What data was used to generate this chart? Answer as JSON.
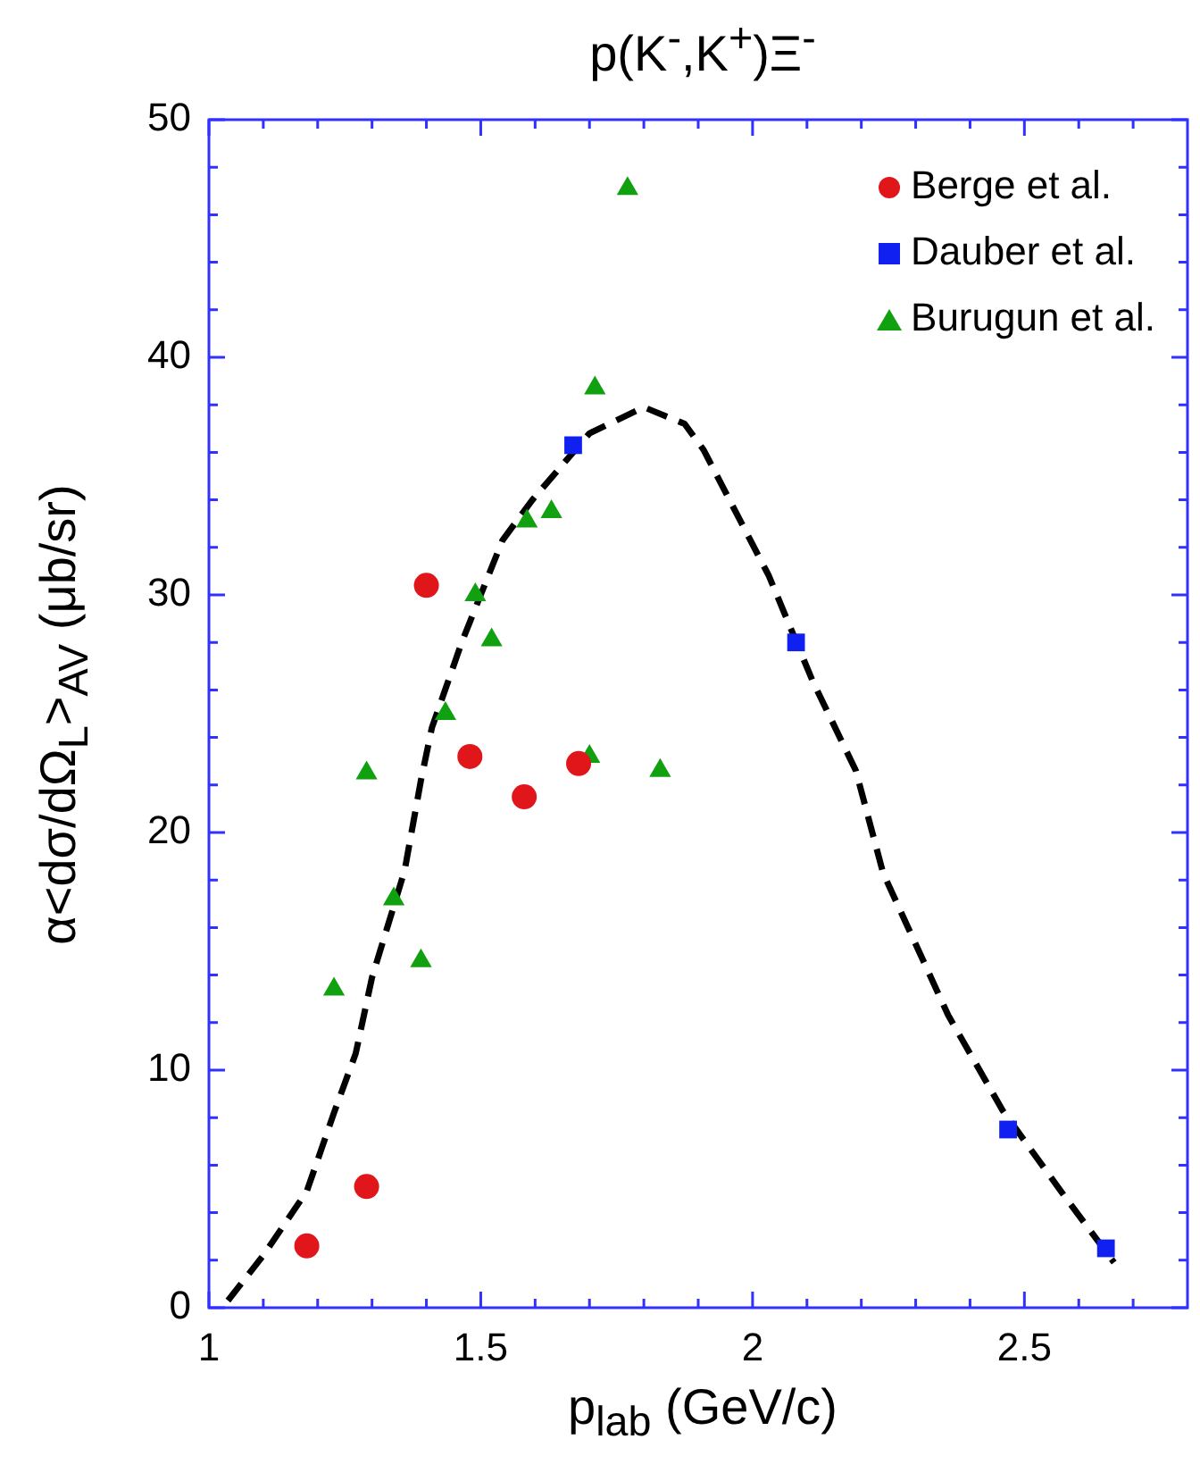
{
  "chart_data": {
    "type": "scatter",
    "title": "p(K$^{-}$,K$^{+}$)Ξ$^{-}$",
    "xlabel": "p$_{lab}$ (GeV/c)",
    "ylabel": "α<dσ/dΩ$_{L}$>$_{AV}$ (μb/sr)",
    "xlim": [
      1,
      2.8
    ],
    "ylim": [
      0,
      50
    ],
    "xticks": [
      1,
      {
        "value": 1.1,
        "label": null
      },
      {
        "value": 1.2,
        "label": null
      },
      {
        "value": 1.3,
        "label": null
      },
      {
        "value": 1.4,
        "label": null
      },
      1.5,
      {
        "value": 1.6,
        "label": null
      },
      {
        "value": 1.7,
        "label": null
      },
      {
        "value": 1.8,
        "label": null
      },
      {
        "value": 1.9,
        "label": null
      },
      2,
      {
        "value": 2.1,
        "label": null
      },
      {
        "value": 2.2,
        "label": null
      },
      {
        "value": 2.3,
        "label": null
      },
      {
        "value": 2.4,
        "label": null
      },
      2.5,
      {
        "value": 2.6,
        "label": null
      },
      {
        "value": 2.7,
        "label": null
      }
    ],
    "yticks": [
      0,
      {
        "value": 2,
        "label": null
      },
      {
        "value": 4,
        "label": null
      },
      {
        "value": 6,
        "label": null
      },
      {
        "value": 8,
        "label": null
      },
      10,
      {
        "value": 12,
        "label": null
      },
      {
        "value": 14,
        "label": null
      },
      {
        "value": 16,
        "label": null
      },
      {
        "value": 18,
        "label": null
      },
      20,
      {
        "value": 22,
        "label": null
      },
      {
        "value": 24,
        "label": null
      },
      {
        "value": 26,
        "label": null
      },
      {
        "value": 28,
        "label": null
      },
      30,
      {
        "value": 32,
        "label": null
      },
      {
        "value": 34,
        "label": null
      },
      {
        "value": 36,
        "label": null
      },
      {
        "value": 38,
        "label": null
      },
      40,
      {
        "value": 42,
        "label": null
      },
      {
        "value": 44,
        "label": null
      },
      {
        "value": 46,
        "label": null
      },
      {
        "value": 48,
        "label": null
      },
      50
    ],
    "legend": "top right",
    "grid": false,
    "series": [
      {
        "name": "Berge et al.",
        "color": "#e0161b",
        "marker": "circle",
        "x": [
          1.18,
          1.29,
          1.4,
          1.48,
          1.58,
          1.68
        ],
        "values": [
          2.6,
          5.1,
          30.4,
          23.2,
          21.5,
          22.9
        ]
      },
      {
        "name": "Dauber et al.",
        "color": "#1020f0",
        "marker": "square",
        "x": [
          1.67,
          2.08,
          2.47,
          2.65
        ],
        "values": [
          36.3,
          28,
          7.5,
          2.5
        ]
      },
      {
        "name": "Burugun et al.",
        "color": "#10a010",
        "marker": "triangle",
        "x": [
          1.77,
          1.71,
          1.585,
          1.63,
          1.49,
          1.52,
          1.435,
          1.29,
          1.7,
          1.83,
          1.34,
          1.39,
          1.23
        ],
        "values": [
          47.1,
          38.7,
          33.1,
          33.5,
          30,
          28.1,
          25,
          22.5,
          23.2,
          22.6,
          17.2,
          14.6,
          13.4
        ]
      },
      {
        "type": "line",
        "color": "#000000",
        "marker": "none",
        "line_style": "dashed",
        "x": [
          1.035,
          1.1,
          1.18,
          1.23,
          1.27,
          1.3,
          1.36,
          1.39,
          1.41,
          1.465,
          1.54,
          1.595,
          1.7,
          1.8,
          1.875,
          1.91,
          2.03,
          2.11,
          2.19,
          2.24,
          2.36,
          2.46,
          2.58,
          2.665
        ],
        "values": [
          0.3,
          2.2,
          4.9,
          8.2,
          10.7,
          13.9,
          18.4,
          22.2,
          24.4,
          28,
          32.3,
          34,
          36.8,
          37.9,
          37.2,
          36.1,
          30.8,
          26.4,
          22.6,
          18.3,
          12.3,
          8.3,
          4.5,
          1.9
        ]
      }
    ]
  }
}
